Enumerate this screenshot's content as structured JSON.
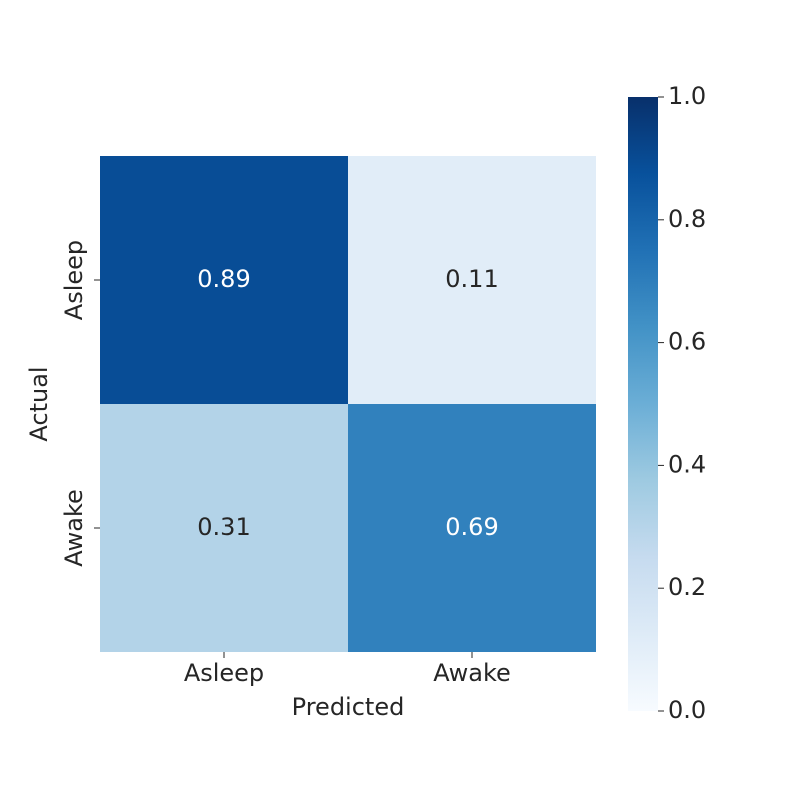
{
  "chart_data": {
    "type": "heatmap",
    "x_categories": [
      "Asleep",
      "Awake"
    ],
    "y_categories": [
      "Asleep",
      "Awake"
    ],
    "values": [
      [
        0.89,
        0.11
      ],
      [
        0.31,
        0.69
      ]
    ],
    "xlabel": "Predicted",
    "ylabel": "Actual",
    "colormap": "Blues",
    "clim": [
      0,
      1
    ],
    "cticks": [
      {
        "value": 0,
        "label": "0.0"
      },
      0.2,
      0.4,
      0.6,
      0.8,
      {
        "value": 1,
        "label": "1.0"
      }
    ]
  }
}
